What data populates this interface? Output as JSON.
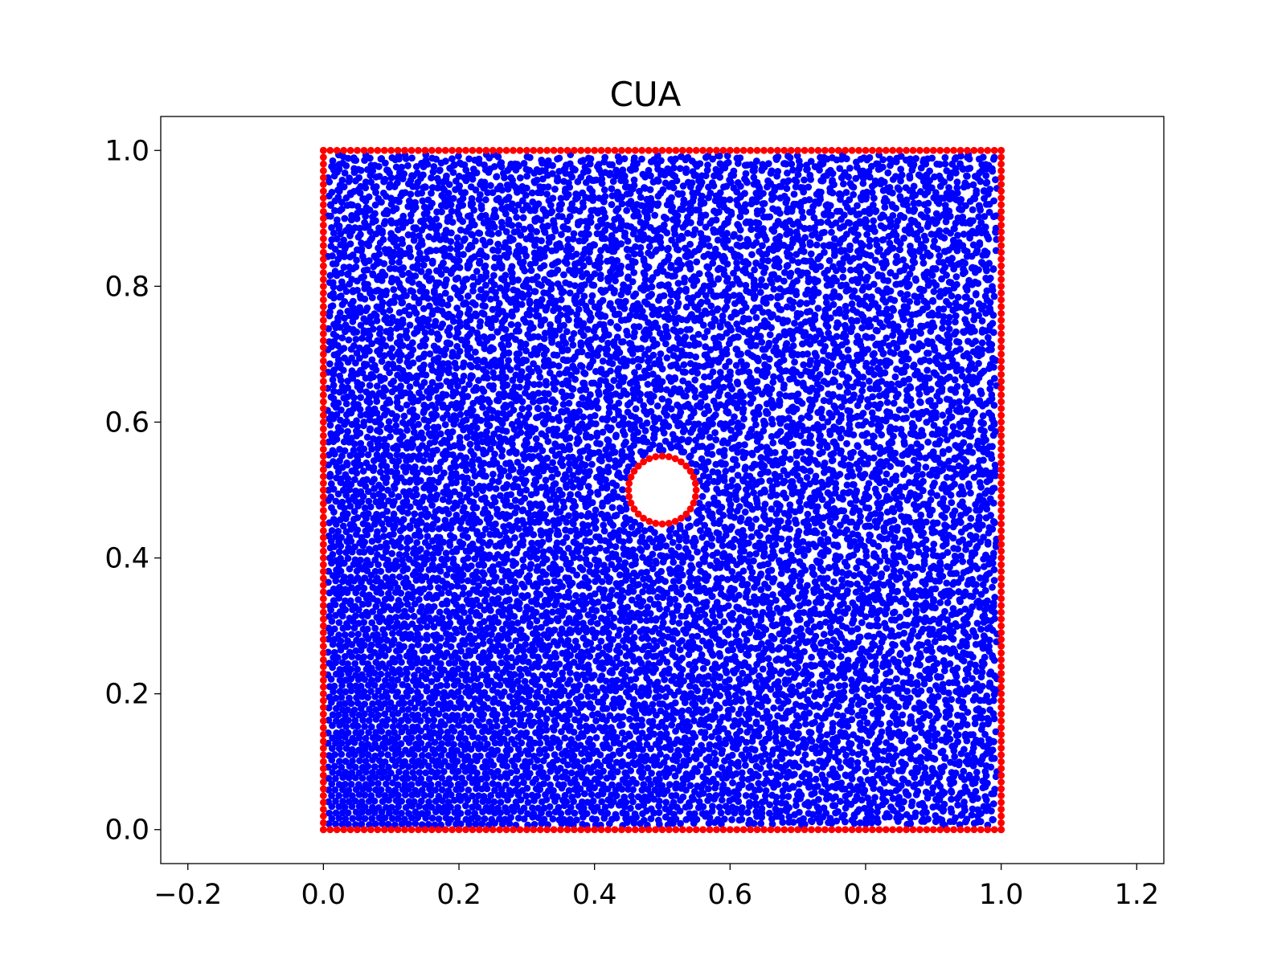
{
  "chart_data": {
    "type": "scatter",
    "title": "CUA",
    "xlabel": "",
    "ylabel": "",
    "xlim": [
      -0.24,
      1.24
    ],
    "ylim": [
      -0.05,
      1.05
    ],
    "xticks": [
      -0.2,
      0.0,
      0.2,
      0.4,
      0.6,
      0.8,
      1.0,
      1.2
    ],
    "xtick_labels": [
      "−0.2",
      "0.0",
      "0.2",
      "0.4",
      "0.6",
      "0.8",
      "1.0",
      "1.2"
    ],
    "yticks": [
      0.0,
      0.2,
      0.4,
      0.6,
      0.8,
      1.0
    ],
    "ytick_labels": [
      "0.0",
      "0.2",
      "0.4",
      "0.6",
      "0.8",
      "1.0"
    ],
    "grid": false,
    "legend": "none",
    "series": [
      {
        "role": "interior",
        "color": "#0000ff",
        "distribution": "scattered points filling the unit square [0,1]×[0,1], excluding a disk of radius 0.05 centred at (0.5, 0.5); near-regular lattice in lower-left, irregular elsewhere",
        "domain": {
          "xmin": 0.0,
          "xmax": 1.0,
          "ymin": 0.0,
          "ymax": 1.0
        },
        "excluded_hole": {
          "cx": 0.5,
          "cy": 0.5,
          "r": 0.05
        },
        "point_spacing": 0.0098
      },
      {
        "role": "boundary",
        "color": "#ff0000",
        "edges": [
          {
            "from": [
              0.0,
              0.0
            ],
            "to": [
              1.0,
              0.0
            ]
          },
          {
            "from": [
              1.0,
              0.0
            ],
            "to": [
              1.0,
              1.0
            ]
          },
          {
            "from": [
              1.0,
              1.0
            ],
            "to": [
              0.0,
              1.0
            ]
          },
          {
            "from": [
              0.0,
              1.0
            ],
            "to": [
              0.0,
              0.0
            ]
          }
        ],
        "edge_point_count": 101,
        "circle": {
          "cx": 0.5,
          "cy": 0.5,
          "r": 0.05,
          "point_count": 32
        }
      }
    ]
  },
  "colors": {
    "interior": "#0000ff",
    "boundary": "#ff0000",
    "axes": "#000000",
    "background": "#ffffff"
  }
}
